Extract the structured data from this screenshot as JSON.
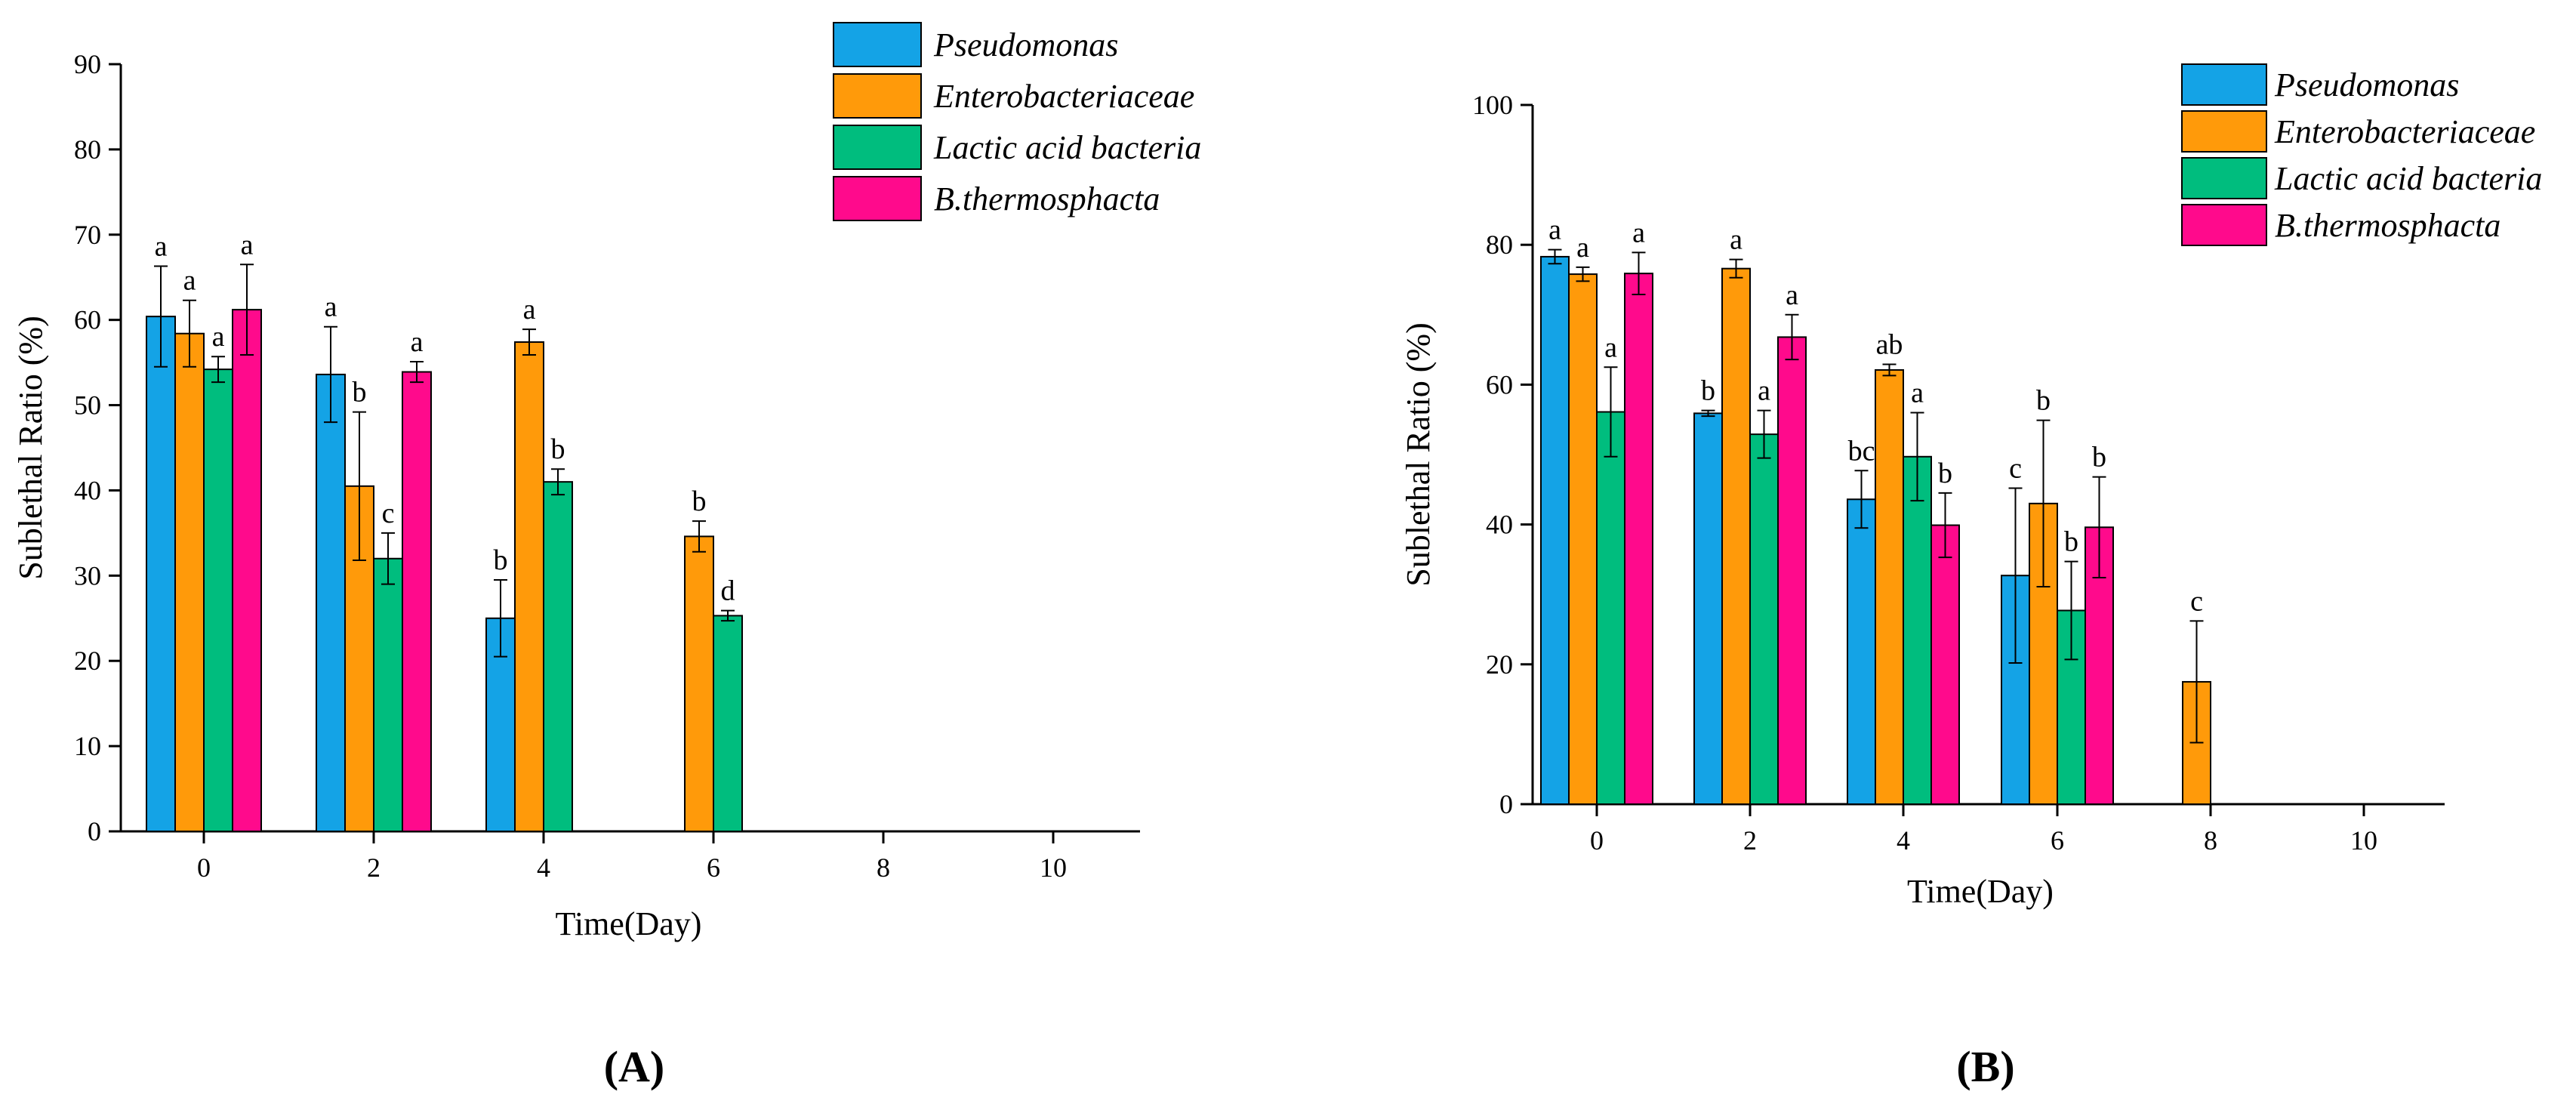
{
  "colors": {
    "Pseudomonas": "#14A3E6",
    "Enterobacteriaceae": "#FF9A0A",
    "Lactic acid bacteria": "#00BD7E",
    "B.thermosphacta": "#FF0A8C"
  },
  "chart_data": [
    {
      "type": "bar",
      "panel_label": "(A)",
      "xlabel": "Time(Day)",
      "ylabel": "Sublethal Ratio (%)",
      "categories": [
        "0",
        "2",
        "4",
        "6",
        "8",
        "10"
      ],
      "ylim": [
        0,
        90
      ],
      "yticks": [
        0,
        10,
        20,
        30,
        40,
        50,
        60,
        70,
        80,
        90
      ],
      "legend_position": "top-right",
      "series": [
        {
          "name": "Pseudomonas",
          "values": [
            60.4,
            53.6,
            25.0,
            null,
            null,
            null
          ],
          "errors": [
            5.9,
            5.6,
            4.5,
            null,
            null,
            null
          ],
          "labels": [
            "a",
            "a",
            "b",
            "",
            "",
            ""
          ]
        },
        {
          "name": "Enterobacteriaceae",
          "values": [
            58.4,
            40.5,
            57.4,
            34.6,
            null,
            null
          ],
          "errors": [
            3.9,
            8.7,
            1.5,
            1.8,
            null,
            null
          ],
          "labels": [
            "a",
            "b",
            "a",
            "b",
            "",
            ""
          ]
        },
        {
          "name": "Lactic acid bacteria",
          "values": [
            54.2,
            32.0,
            41.0,
            25.3,
            null,
            null
          ],
          "errors": [
            1.5,
            3.0,
            1.5,
            0.6,
            null,
            null
          ],
          "labels": [
            "a",
            "c",
            "b",
            "d",
            "",
            ""
          ]
        },
        {
          "name": "B.thermosphacta",
          "values": [
            61.2,
            53.9,
            null,
            null,
            null,
            null
          ],
          "errors": [
            5.3,
            1.2,
            null,
            null,
            null,
            null
          ],
          "labels": [
            "a",
            "a",
            "",
            "",
            "",
            ""
          ]
        }
      ]
    },
    {
      "type": "bar",
      "panel_label": "(B)",
      "xlabel": "Time(Day)",
      "ylabel": "Sublethal Ratio (%)",
      "categories": [
        "0",
        "2",
        "4",
        "6",
        "8",
        "10"
      ],
      "ylim": [
        0,
        100
      ],
      "yticks": [
        0,
        20,
        40,
        60,
        80,
        100
      ],
      "legend_position": "top-right",
      "series": [
        {
          "name": "Pseudomonas",
          "values": [
            78.3,
            55.9,
            43.6,
            32.7,
            null,
            null
          ],
          "errors": [
            1.0,
            0.4,
            4.1,
            12.5,
            null,
            null
          ],
          "labels": [
            "a",
            "b",
            "bc",
            "c",
            "",
            ""
          ]
        },
        {
          "name": "Enterobacteriaceae",
          "values": [
            75.8,
            76.6,
            62.1,
            43.0,
            17.5,
            null
          ],
          "errors": [
            1.0,
            1.3,
            0.8,
            11.9,
            8.7,
            null
          ],
          "labels": [
            "a",
            "a",
            "ab",
            "b",
            "c",
            ""
          ]
        },
        {
          "name": "Lactic acid bacteria",
          "values": [
            56.1,
            52.9,
            49.7,
            27.7,
            null,
            null
          ],
          "errors": [
            6.4,
            3.4,
            6.3,
            7.0,
            null,
            null
          ],
          "labels": [
            "a",
            "a",
            "a",
            "b",
            "",
            ""
          ]
        },
        {
          "name": "B.thermosphacta",
          "values": [
            75.9,
            66.8,
            39.9,
            39.6,
            null,
            null
          ],
          "errors": [
            3.0,
            3.2,
            4.6,
            7.2,
            null,
            null
          ],
          "labels": [
            "a",
            "a",
            "b",
            "b",
            "",
            ""
          ]
        }
      ]
    }
  ]
}
